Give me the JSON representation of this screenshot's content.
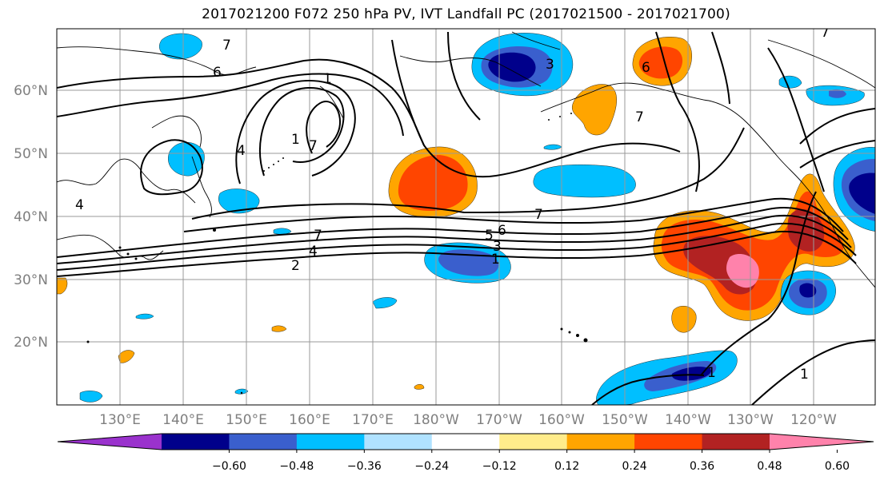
{
  "title": "2017021200 F072 250 hPa PV, IVT Landfall PC (2017021500 - 2017021700)",
  "lat_labels": [
    "60°N",
    "50°N",
    "40°N",
    "30°N",
    "20°N"
  ],
  "lon_labels": [
    "130°E",
    "140°E",
    "150°E",
    "160°E",
    "170°E",
    "180°W",
    "170°W",
    "160°W",
    "150°W",
    "140°W",
    "130°W",
    "120°W"
  ],
  "colorbar": {
    "levels": [
      "-0.60",
      "-0.48",
      "-0.36",
      "-0.24",
      "-0.12",
      "0.12",
      "0.24",
      "0.36",
      "0.48",
      "0.60"
    ],
    "colors": [
      "#9a32cd",
      "#00008b",
      "#3a5fcd",
      "#00bfff",
      "#b0e2ff",
      "#ffffff",
      "#ffec8b",
      "#ffa500",
      "#ff4500",
      "#b22222",
      "#ff82ab"
    ]
  },
  "contour_labels": [
    "7",
    "6",
    "1",
    "4",
    "7",
    "7",
    "4",
    "2",
    "5",
    "6",
    "3",
    "1",
    "4",
    "7",
    "7",
    "1",
    "1",
    "6",
    "3",
    "7",
    "1"
  ],
  "chart_data": {
    "type": "heatmap",
    "field": "IVT Landfall PC (shaded), 250 hPa PV (contours)",
    "shading_levels": [
      -0.6,
      -0.48,
      -0.36,
      -0.24,
      -0.12,
      0.12,
      0.24,
      0.36,
      0.48,
      0.6
    ],
    "contour_values_labeled": [
      1,
      2,
      3,
      4,
      5,
      6,
      7
    ]
  }
}
